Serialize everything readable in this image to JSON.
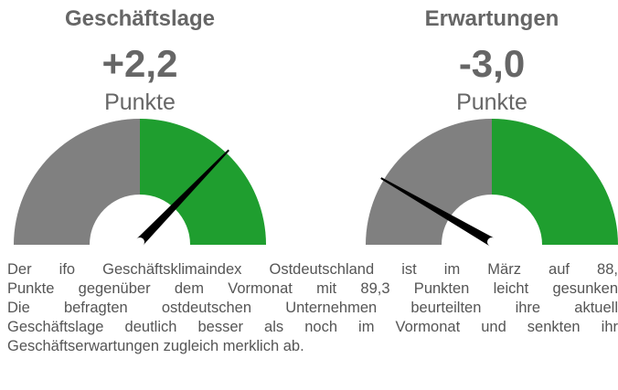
{
  "chart_data": [
    {
      "type": "gauge",
      "title": "Geschäftslage",
      "value": 2.2,
      "value_label": "+2,2",
      "unit": "Punkte",
      "ylim": [
        -4.5,
        4.5
      ],
      "colors": [
        "#808080",
        "#1f9e2f"
      ],
      "needle_color": "#000000"
    },
    {
      "type": "gauge",
      "title": "Erwartungen",
      "value": -3.0,
      "value_label": "-3,0",
      "unit": "Punkte",
      "ylim": [
        -4.5,
        4.5
      ],
      "colors": [
        "#808080",
        "#1f9e2f"
      ],
      "needle_color": "#000000"
    }
  ],
  "paragraph": [
    "Der ifo Geschäftsklimaindex Ostdeutschland ist im März auf 88,",
    "Punkte gegenüber dem Vormonat mit 89,3 Punkten leicht gesunken",
    "Die befragten ostdeutschen Unternehmen beurteilten ihre aktuell",
    "Geschäftslage deutlich besser als noch im Vormonat und senkten ihr",
    "Geschäftserwartungen zugleich merklich ab."
  ]
}
